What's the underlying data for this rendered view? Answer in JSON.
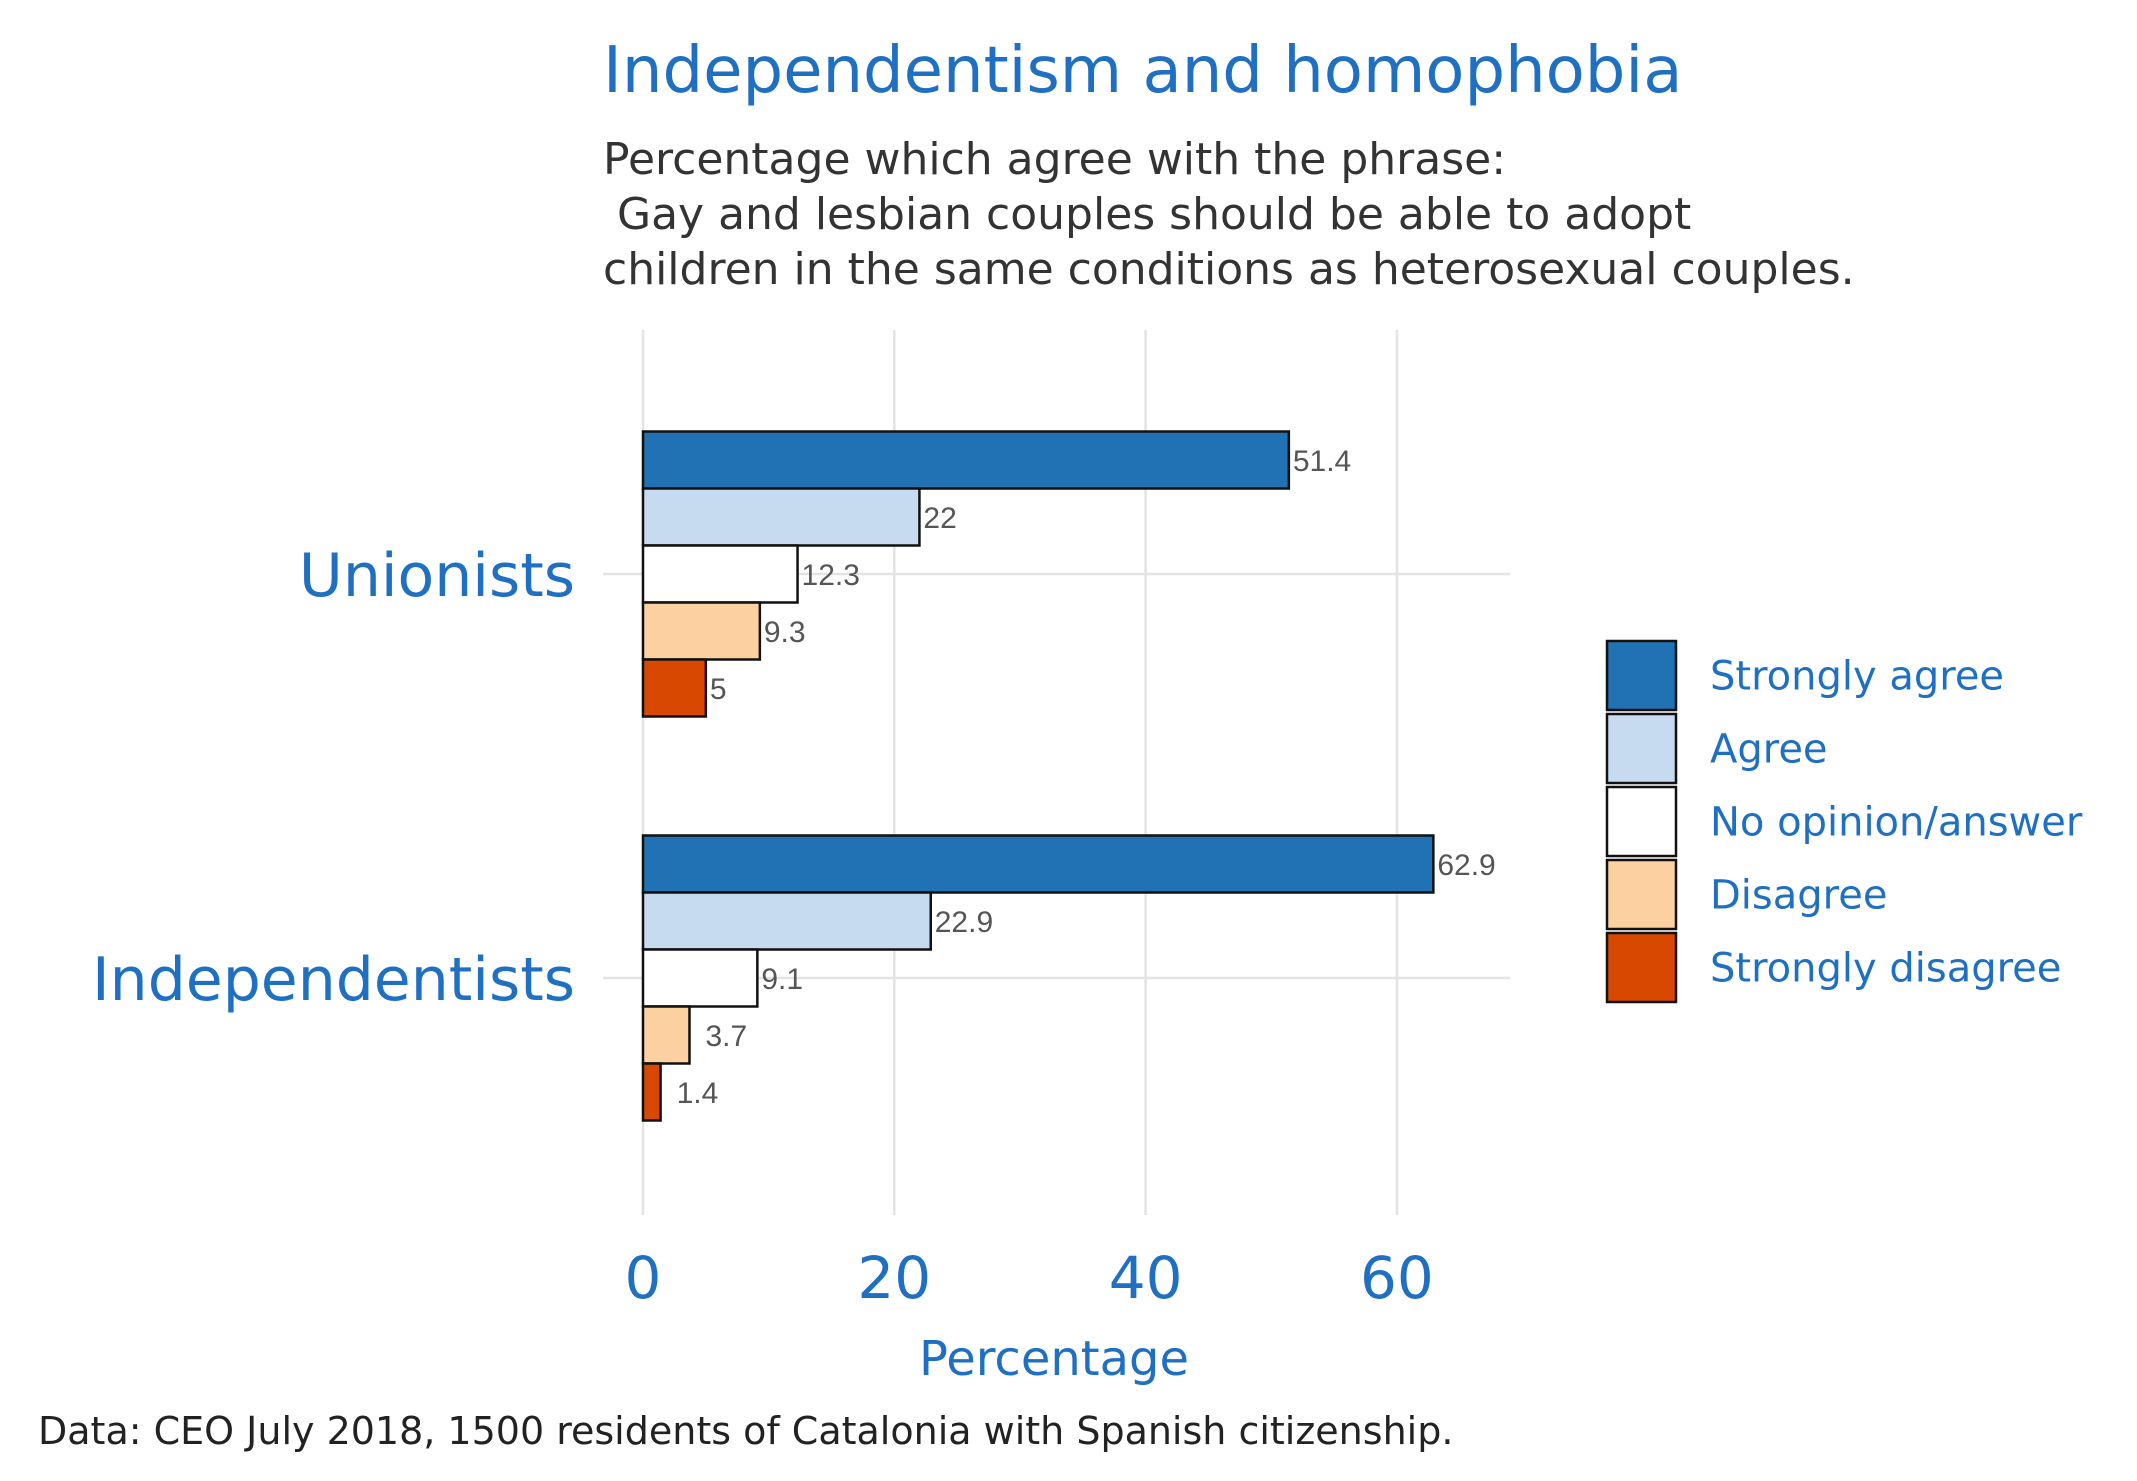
{
  "chart_data": {
    "type": "bar",
    "orientation": "horizontal",
    "title": "Independentism and homophobia",
    "subtitle": [
      "Percentage which agree with the phrase:",
      " Gay and lesbian couples should be able to adopt",
      "children in the same conditions as heterosexual couples."
    ],
    "caption": "Data: CEO July 2018, 1500 residents of Catalonia with Spanish citizenship.",
    "xlabel": "Percentage",
    "ylabel": "",
    "xlim": [
      0,
      69
    ],
    "xticks": [
      0,
      20,
      40,
      60
    ],
    "grid": true,
    "legend_position": "right",
    "categories": [
      "Unionists",
      "Independentists"
    ],
    "series": [
      {
        "name": "Strongly agree",
        "color": "#2171b5",
        "values": [
          51.4,
          62.9
        ],
        "labels": [
          "51.4",
          "62.9"
        ]
      },
      {
        "name": "Agree",
        "color": "#c6dbef",
        "values": [
          22,
          22.9
        ],
        "labels": [
          "22",
          "22.9"
        ]
      },
      {
        "name": "No opinion/answer",
        "color": "#ffffff",
        "values": [
          12.3,
          9.1
        ],
        "labels": [
          "12.3",
          "9.1"
        ]
      },
      {
        "name": "Disagree",
        "color": "#fdd0a2",
        "values": [
          9.3,
          3.7
        ],
        "labels": [
          "9.3",
          "3.7"
        ]
      },
      {
        "name": "Strongly disagree",
        "color": "#d94801",
        "values": [
          5,
          1.4
        ],
        "labels": [
          "5",
          "1.4"
        ]
      }
    ]
  }
}
